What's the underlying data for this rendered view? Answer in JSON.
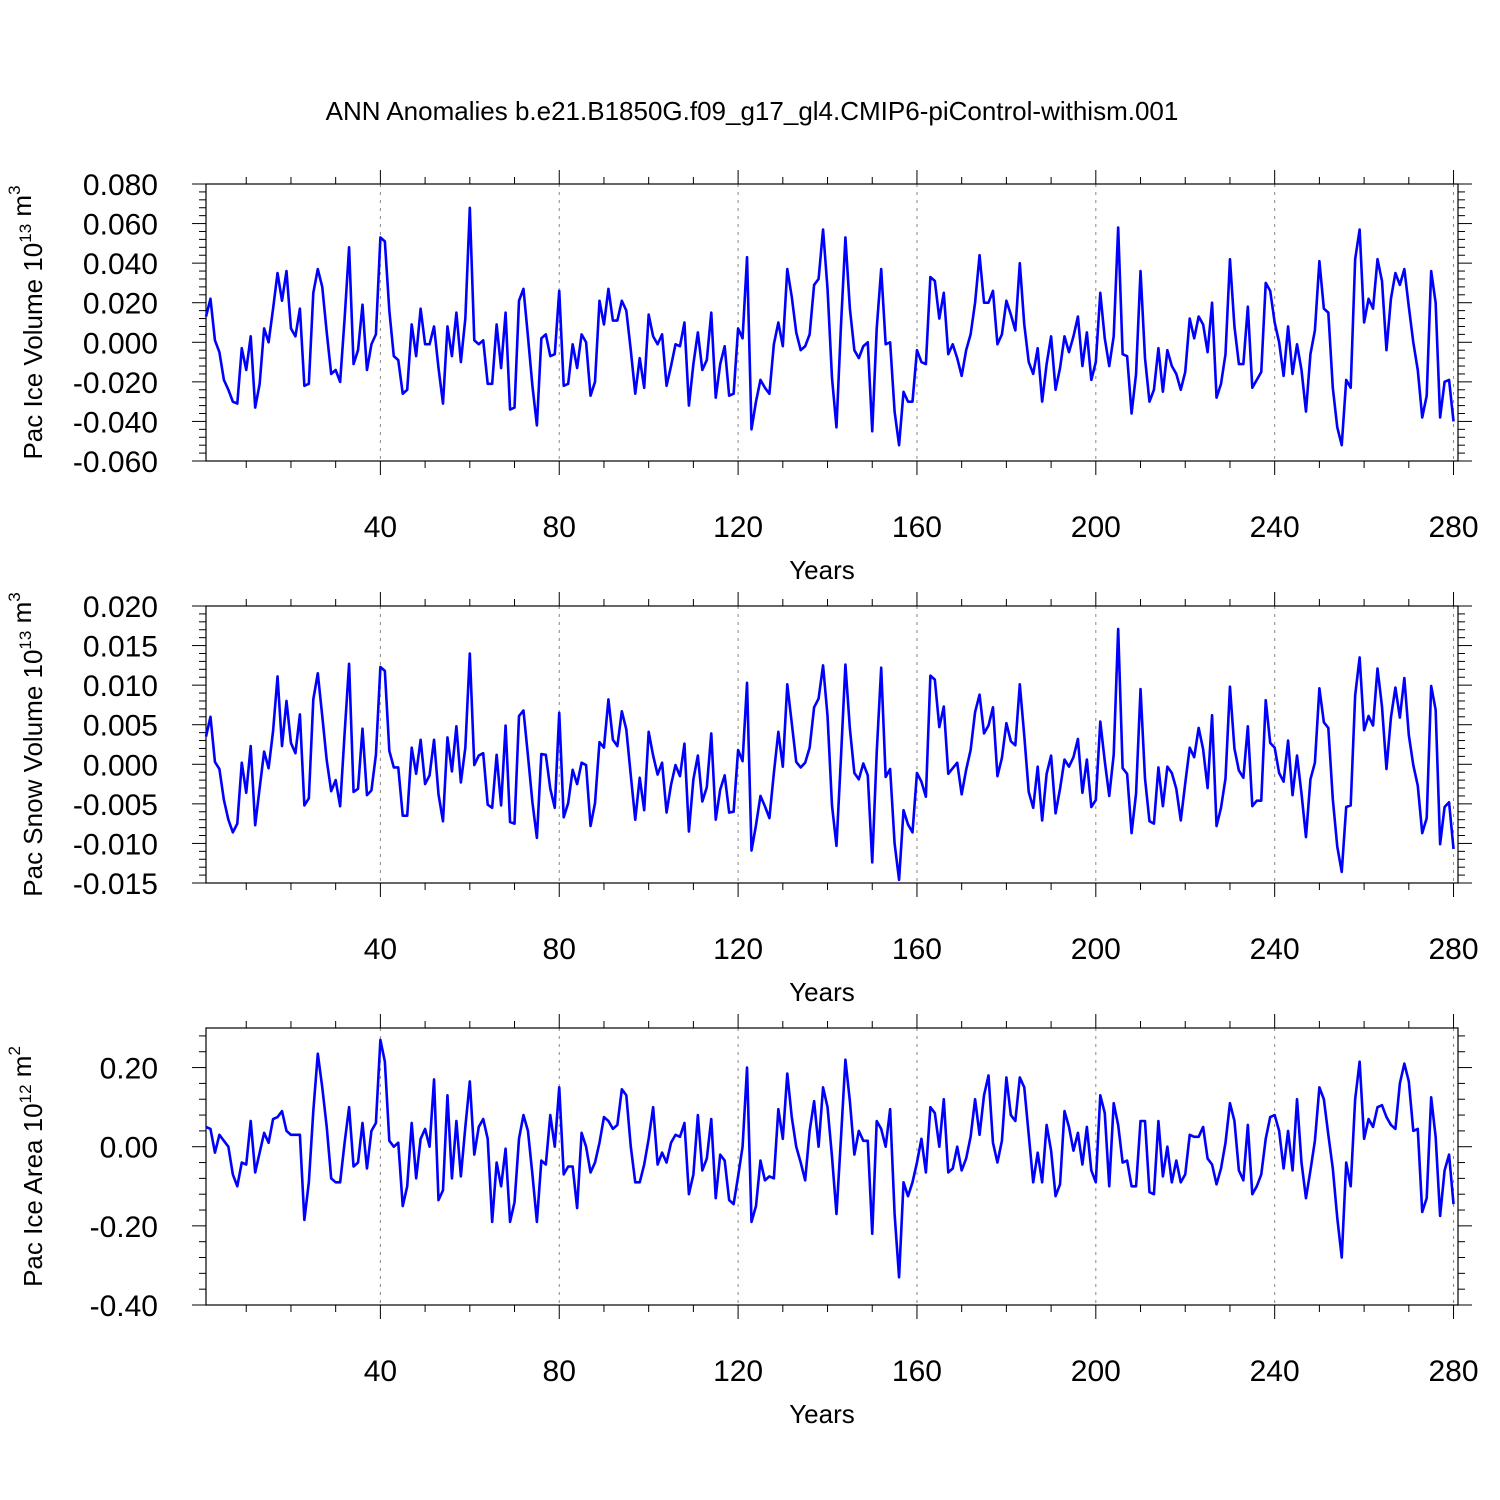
{
  "title": "ANN Anomalies b.e21.B1850G.f09_g17_gl4.CMIP6-piControl-withism.001",
  "chart_data": [
    {
      "type": "line",
      "ylabel": {
        "text": "Pac Ice Volume 10",
        "exp": "13",
        "unit": " m",
        "unit_exp": "3"
      },
      "xlabel": "Years",
      "xlim": [
        1,
        281
      ],
      "ylim": [
        -0.06,
        0.08
      ],
      "xticks": [
        40,
        80,
        120,
        160,
        200,
        240,
        280
      ],
      "yticks": [
        -0.06,
        -0.04,
        -0.02,
        0.0,
        0.02,
        0.04,
        0.06,
        0.08
      ],
      "yticklabels": [
        "-0.060",
        "-0.040",
        "-0.020",
        "0.000",
        "0.020",
        "0.040",
        "0.060",
        "0.080"
      ],
      "grid_x": true,
      "series": [
        {
          "color": "#0000ff",
          "x_start": 1,
          "x_step": 1,
          "values": [
            0.013,
            0.022,
            0.001,
            -0.005,
            -0.019,
            -0.024,
            -0.03,
            -0.031,
            -0.003,
            -0.014,
            0.003,
            -0.033,
            -0.021,
            0.007,
            0.0,
            0.017,
            0.035,
            0.021,
            0.036,
            0.007,
            0.003,
            0.017,
            -0.022,
            -0.021,
            0.025,
            0.037,
            0.028,
            0.005,
            -0.016,
            -0.014,
            -0.02,
            0.012,
            0.048,
            -0.011,
            -0.004,
            0.019,
            -0.014,
            -0.001,
            0.004,
            0.053,
            0.051,
            0.016,
            -0.007,
            -0.009,
            -0.026,
            -0.024,
            0.009,
            -0.007,
            0.017,
            -0.001,
            -0.001,
            0.008,
            -0.013,
            -0.031,
            0.008,
            -0.007,
            0.015,
            -0.01,
            0.012,
            0.068,
            0.001,
            -0.001,
            0.001,
            -0.021,
            -0.021,
            0.009,
            -0.013,
            0.015,
            -0.034,
            -0.033,
            0.021,
            0.027,
            0.003,
            -0.022,
            -0.042,
            0.002,
            0.004,
            -0.007,
            -0.006,
            0.026,
            -0.022,
            -0.021,
            -0.001,
            -0.013,
            0.004,
            0.0,
            -0.027,
            -0.02,
            0.021,
            0.009,
            0.027,
            0.011,
            0.011,
            0.021,
            0.016,
            -0.004,
            -0.026,
            -0.008,
            -0.023,
            0.014,
            0.003,
            -0.001,
            0.004,
            -0.022,
            -0.012,
            -0.001,
            -0.002,
            0.01,
            -0.032,
            -0.011,
            0.005,
            -0.014,
            -0.009,
            0.015,
            -0.028,
            -0.011,
            -0.002,
            -0.027,
            -0.026,
            0.007,
            0.002,
            0.043,
            -0.044,
            -0.03,
            -0.019,
            -0.023,
            -0.026,
            -0.001,
            0.01,
            -0.002,
            0.037,
            0.023,
            0.005,
            -0.004,
            -0.002,
            0.004,
            0.029,
            0.032,
            0.057,
            0.027,
            -0.018,
            -0.043,
            0.008,
            0.053,
            0.017,
            -0.004,
            -0.008,
            -0.002,
            0.0,
            -0.045,
            0.007,
            0.037,
            -0.001,
            0.0,
            -0.035,
            -0.052,
            -0.025,
            -0.03,
            -0.03,
            -0.004,
            -0.01,
            -0.011,
            0.033,
            0.031,
            0.012,
            0.025,
            -0.006,
            -0.001,
            -0.008,
            -0.017,
            -0.004,
            0.004,
            0.02,
            0.044,
            0.02,
            0.02,
            0.026,
            -0.001,
            0.004,
            0.021,
            0.014,
            0.006,
            0.04,
            0.009,
            -0.01,
            -0.016,
            -0.003,
            -0.03,
            -0.011,
            0.003,
            -0.024,
            -0.013,
            0.003,
            -0.005,
            0.003,
            0.013,
            -0.012,
            0.005,
            -0.019,
            -0.01,
            0.025,
            0.002,
            -0.012,
            0.003,
            0.058,
            -0.006,
            -0.007,
            -0.036,
            -0.016,
            0.036,
            -0.008,
            -0.03,
            -0.024,
            -0.003,
            -0.025,
            -0.004,
            -0.012,
            -0.016,
            -0.024,
            -0.015,
            0.012,
            0.002,
            0.013,
            0.009,
            -0.005,
            0.02,
            -0.028,
            -0.021,
            -0.006,
            0.042,
            0.008,
            -0.011,
            -0.011,
            0.018,
            -0.023,
            -0.019,
            -0.015,
            0.03,
            0.026,
            0.01,
            0.0,
            -0.017,
            0.008,
            -0.016,
            -0.001,
            -0.014,
            -0.035,
            -0.006,
            0.006,
            0.041,
            0.017,
            0.015,
            -0.023,
            -0.043,
            -0.052,
            -0.019,
            -0.023,
            0.042,
            0.057,
            0.01,
            0.022,
            0.017,
            0.042,
            0.031,
            -0.004,
            0.022,
            0.035,
            0.029,
            0.037,
            0.018,
            0.0,
            -0.014,
            -0.038,
            -0.027,
            0.036,
            0.02,
            -0.038,
            -0.02,
            -0.019,
            -0.04
          ]
        }
      ]
    },
    {
      "type": "line",
      "ylabel": {
        "text": "Pac Snow Volume 10",
        "exp": "13",
        "unit": " m",
        "unit_exp": "3"
      },
      "xlabel": "Years",
      "xlim": [
        1,
        281
      ],
      "ylim": [
        -0.015,
        0.02
      ],
      "xticks": [
        40,
        80,
        120,
        160,
        200,
        240,
        280
      ],
      "yticks": [
        -0.015,
        -0.01,
        -0.005,
        0.0,
        0.005,
        0.01,
        0.015,
        0.02
      ],
      "yticklabels": [
        "-0.015",
        "-0.010",
        "-0.005",
        "0.000",
        "0.005",
        "0.010",
        "0.015",
        "0.020"
      ],
      "grid_x": true,
      "series": [
        {
          "color": "#0000ff",
          "x_start": 1,
          "x_step": 1,
          "values": [
            0.0035,
            0.006,
            0.0003,
            -0.0006,
            -0.0045,
            -0.007,
            -0.0086,
            -0.0075,
            0.0002,
            -0.0036,
            0.0023,
            -0.0077,
            -0.003,
            0.0016,
            -0.0005,
            0.0042,
            0.0111,
            0.0023,
            0.008,
            0.0027,
            0.0014,
            0.0063,
            -0.0052,
            -0.0043,
            0.0082,
            0.0115,
            0.0061,
            0.0005,
            -0.0034,
            -0.002,
            -0.0053,
            0.0039,
            0.0127,
            -0.0035,
            -0.0031,
            0.0045,
            -0.0039,
            -0.0033,
            0.0012,
            0.0123,
            0.0118,
            0.0017,
            -0.0004,
            -0.0004,
            -0.0065,
            -0.0065,
            0.0021,
            -0.0012,
            0.0031,
            -0.0025,
            -0.0014,
            0.0031,
            -0.0038,
            -0.0072,
            0.0034,
            -0.0009,
            0.0048,
            -0.0023,
            0.0021,
            0.014,
            -0.0001,
            0.0011,
            0.0014,
            -0.0051,
            -0.0055,
            0.0012,
            -0.0052,
            0.0049,
            -0.0073,
            -0.0075,
            0.0061,
            0.0068,
            0.0011,
            -0.0048,
            -0.0093,
            0.0013,
            0.0012,
            -0.0031,
            -0.0055,
            0.0065,
            -0.0067,
            -0.0049,
            -0.0007,
            -0.0025,
            0.0002,
            -0.0001,
            -0.0078,
            -0.0049,
            0.0028,
            0.0021,
            0.0082,
            0.0031,
            0.0023,
            0.0067,
            0.0044,
            -0.0014,
            -0.007,
            -0.0017,
            -0.0058,
            0.0041,
            0.0011,
            -0.0013,
            0.0002,
            -0.0061,
            -0.0026,
            -0.0001,
            -0.0015,
            0.0026,
            -0.0085,
            -0.0019,
            0.0011,
            -0.0047,
            -0.0029,
            0.0039,
            -0.007,
            -0.0032,
            -0.0014,
            -0.0061,
            -0.006,
            0.0018,
            0.0004,
            0.0103,
            -0.0109,
            -0.0077,
            -0.004,
            -0.0053,
            -0.0068,
            -0.0011,
            0.0041,
            -0.0003,
            0.0101,
            0.0052,
            0.0003,
            -0.0004,
            0.0002,
            0.0021,
            0.0072,
            0.0083,
            0.0125,
            0.0061,
            -0.0052,
            -0.0103,
            0.0008,
            0.0126,
            0.0045,
            -0.0011,
            -0.0019,
            0.0001,
            -0.0014,
            -0.0124,
            0.0015,
            0.0122,
            -0.0016,
            -0.0006,
            -0.01,
            -0.0146,
            -0.0058,
            -0.0076,
            -0.0086,
            -0.0011,
            -0.0022,
            -0.0041,
            0.0112,
            0.0107,
            0.0047,
            0.0073,
            -0.0012,
            -0.0005,
            0.0002,
            -0.0038,
            -0.0007,
            0.0018,
            0.0066,
            0.0088,
            0.0039,
            0.0049,
            0.0072,
            -0.0015,
            0.0008,
            0.0052,
            0.0029,
            0.0024,
            0.0101,
            0.0036,
            -0.0035,
            -0.0055,
            -0.0003,
            -0.0071,
            -0.0012,
            0.0011,
            -0.0062,
            -0.0031,
            0.0006,
            -0.0003,
            0.0009,
            0.0032,
            -0.0036,
            0.0006,
            -0.0054,
            -0.0045,
            0.0054,
            0.0004,
            -0.004,
            0.0012,
            0.0171,
            -0.0005,
            -0.0012,
            -0.0087,
            -0.0037,
            0.0095,
            -0.0018,
            -0.0072,
            -0.0075,
            -0.0004,
            -0.0053,
            -0.0003,
            -0.0011,
            -0.0031,
            -0.0071,
            -0.0024,
            0.0021,
            0.0009,
            0.0046,
            0.0019,
            -0.003,
            0.0062,
            -0.0078,
            -0.0055,
            -0.0018,
            0.0098,
            0.002,
            -0.0008,
            -0.0017,
            0.0048,
            -0.0053,
            -0.0046,
            -0.0046,
            0.0081,
            0.0027,
            0.0021,
            -0.0011,
            -0.0022,
            0.003,
            -0.0039,
            0.0011,
            -0.0037,
            -0.0092,
            -0.0019,
            0.0002,
            0.0096,
            0.0053,
            0.0046,
            -0.0044,
            -0.0104,
            -0.0136,
            -0.0054,
            -0.0052,
            0.0087,
            0.0135,
            0.0043,
            0.0061,
            0.0049,
            0.0121,
            0.0073,
            -0.0006,
            0.0059,
            0.0097,
            0.0059,
            0.0109,
            0.0037,
            -0.0001,
            -0.0027,
            -0.0087,
            -0.0068,
            0.0099,
            0.0069,
            -0.0101,
            -0.0054,
            -0.0048,
            -0.0107
          ]
        }
      ]
    },
    {
      "type": "line",
      "ylabel": {
        "text": "Pac Ice Area 10",
        "exp": "12",
        "unit": " m",
        "unit_exp": "2"
      },
      "xlabel": "Years",
      "xlim": [
        1,
        281
      ],
      "ylim": [
        -0.4,
        0.3
      ],
      "xticks": [
        40,
        80,
        120,
        160,
        200,
        240,
        280
      ],
      "yticks": [
        -0.4,
        -0.2,
        0.0,
        0.2
      ],
      "yticklabels": [
        "-0.40",
        "-0.20",
        "0.00",
        "0.20"
      ],
      "grid_x": true,
      "series": [
        {
          "color": "#0000ff",
          "x_start": 1,
          "x_step": 1,
          "values": [
            0.05,
            0.045,
            -0.015,
            0.03,
            0.015,
            0.0,
            -0.07,
            -0.1,
            -0.04,
            -0.045,
            0.065,
            -0.065,
            -0.015,
            0.035,
            0.01,
            0.07,
            0.075,
            0.09,
            0.04,
            0.03,
            0.03,
            0.03,
            -0.185,
            -0.09,
            0.09,
            0.235,
            0.15,
            0.05,
            -0.08,
            -0.09,
            -0.09,
            0.01,
            0.1,
            -0.05,
            -0.04,
            0.06,
            -0.055,
            0.04,
            0.06,
            0.27,
            0.215,
            0.015,
            0.0,
            0.01,
            -0.15,
            -0.1,
            0.06,
            -0.08,
            0.02,
            0.045,
            0.0,
            0.17,
            -0.135,
            -0.11,
            0.13,
            -0.08,
            0.065,
            -0.075,
            0.05,
            0.165,
            -0.02,
            0.05,
            0.07,
            0.02,
            -0.19,
            -0.04,
            -0.1,
            -0.005,
            -0.19,
            -0.14,
            0.02,
            0.08,
            0.04,
            -0.07,
            -0.19,
            -0.035,
            -0.045,
            0.08,
            0.0,
            0.15,
            -0.07,
            -0.05,
            -0.05,
            -0.155,
            0.035,
            0.0,
            -0.065,
            -0.04,
            0.01,
            0.075,
            0.065,
            0.045,
            0.055,
            0.145,
            0.13,
            0.0,
            -0.09,
            -0.09,
            -0.045,
            0.02,
            0.1,
            -0.045,
            -0.015,
            -0.04,
            0.01,
            0.03,
            0.025,
            0.06,
            -0.12,
            -0.07,
            0.08,
            -0.06,
            -0.03,
            0.07,
            -0.13,
            -0.02,
            -0.035,
            -0.135,
            -0.145,
            -0.075,
            0.0,
            0.2,
            -0.19,
            -0.15,
            -0.035,
            -0.085,
            -0.075,
            -0.08,
            0.095,
            0.02,
            0.185,
            0.075,
            0.0,
            -0.04,
            -0.085,
            0.04,
            0.115,
            0.0,
            0.15,
            0.1,
            -0.025,
            -0.17,
            0.02,
            0.22,
            0.115,
            -0.02,
            0.04,
            0.015,
            0.015,
            -0.22,
            0.065,
            0.045,
            0.0,
            0.095,
            -0.17,
            -0.33,
            -0.09,
            -0.125,
            -0.09,
            -0.04,
            0.02,
            -0.065,
            0.1,
            0.085,
            0.0,
            0.12,
            -0.065,
            -0.055,
            0.0,
            -0.06,
            -0.03,
            0.025,
            0.12,
            0.03,
            0.13,
            0.18,
            0.01,
            -0.04,
            0.015,
            0.175,
            0.08,
            0.065,
            0.175,
            0.15,
            0.03,
            -0.09,
            -0.015,
            -0.09,
            0.055,
            -0.01,
            -0.125,
            -0.095,
            0.09,
            0.05,
            -0.01,
            0.035,
            -0.045,
            0.05,
            -0.06,
            -0.09,
            0.13,
            0.085,
            -0.1,
            0.11,
            0.055,
            -0.04,
            -0.035,
            -0.1,
            -0.1,
            0.065,
            0.065,
            -0.115,
            -0.12,
            0.065,
            -0.075,
            0.0,
            -0.09,
            -0.035,
            -0.09,
            -0.07,
            0.03,
            0.025,
            0.025,
            0.05,
            -0.03,
            -0.045,
            -0.095,
            -0.055,
            0.01,
            0.11,
            0.065,
            -0.06,
            -0.085,
            0.055,
            -0.12,
            -0.1,
            -0.07,
            0.02,
            0.075,
            0.08,
            0.04,
            -0.055,
            0.04,
            -0.06,
            0.12,
            -0.04,
            -0.13,
            -0.06,
            0.015,
            0.15,
            0.12,
            0.03,
            -0.055,
            -0.18,
            -0.28,
            -0.04,
            -0.1,
            0.12,
            0.215,
            0.02,
            0.07,
            0.05,
            0.1,
            0.105,
            0.075,
            0.055,
            0.045,
            0.16,
            0.21,
            0.165,
            0.04,
            0.045,
            -0.165,
            -0.13,
            0.125,
            0.025,
            -0.175,
            -0.06,
            -0.02,
            -0.145
          ]
        }
      ]
    }
  ]
}
